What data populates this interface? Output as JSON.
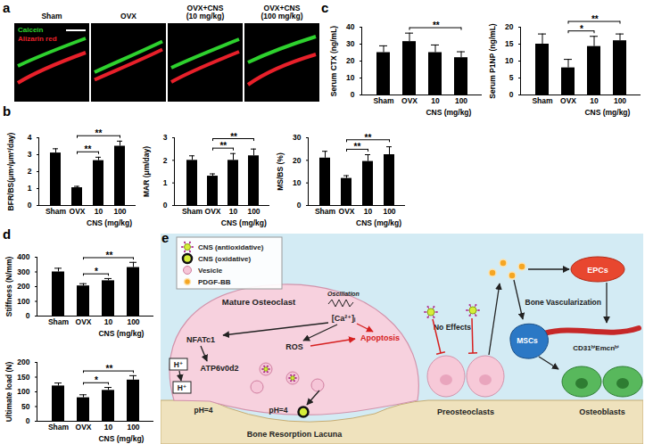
{
  "panel_labels": [
    "a",
    "b",
    "c",
    "d",
    "e"
  ],
  "micrographs": {
    "panels": [
      [
        "Sham"
      ],
      [
        "OVX"
      ],
      [
        "OVX+CNS",
        "(10 mg/kg)"
      ],
      [
        "OVX+CNS",
        "(100 mg/kg)"
      ]
    ],
    "legend": [
      {
        "name": "Calcein",
        "color": "#2ed12e"
      },
      {
        "name": "Alizarin red",
        "color": "#e8202a"
      }
    ]
  },
  "chart_data": [
    {
      "type": "bar",
      "y_label": "BFR/BS(μm³/μm²/day)",
      "categories": [
        "Sham",
        "OVX",
        "10",
        "100"
      ],
      "group": {
        "label": "CNS (mg/kg)",
        "categories": [
          "10",
          "100"
        ]
      },
      "values": [
        3.1,
        1.05,
        2.65,
        3.5
      ],
      "errors": [
        0.25,
        0.08,
        0.2,
        0.3
      ],
      "color": "#000000",
      "ylim": [
        0,
        4
      ],
      "yticks": [
        0,
        1,
        2,
        3,
        4
      ],
      "significance": [
        {
          "from": "OVX",
          "to": "10",
          "label": "**"
        },
        {
          "from": "OVX",
          "to": "100",
          "label": "**"
        }
      ]
    },
    {
      "type": "bar",
      "y_label": "MAR (μm/day)",
      "categories": [
        "Sham",
        "OVX",
        "10",
        "100"
      ],
      "group": {
        "label": "CNS (mg/kg)",
        "categories": [
          "10",
          "100"
        ]
      },
      "values": [
        2.0,
        1.3,
        2.0,
        2.2
      ],
      "errors": [
        0.2,
        0.1,
        0.3,
        0.3
      ],
      "color": "#000000",
      "ylim": [
        0,
        3
      ],
      "yticks": [
        0,
        1,
        2,
        3
      ],
      "significance": [
        {
          "from": "OVX",
          "to": "10",
          "label": "**"
        },
        {
          "from": "OVX",
          "to": "100",
          "label": "**"
        }
      ]
    },
    {
      "type": "bar",
      "y_label": "MS/BS (%)",
      "categories": [
        "Sham",
        "OVX",
        "10",
        "100"
      ],
      "group": {
        "label": "CNS (mg/kg)",
        "categories": [
          "10",
          "100"
        ]
      },
      "values": [
        21,
        12,
        19.5,
        22.5
      ],
      "errors": [
        3,
        1.2,
        3,
        3.5
      ],
      "color": "#000000",
      "ylim": [
        0,
        30
      ],
      "yticks": [
        0,
        10,
        20,
        30
      ],
      "significance": [
        {
          "from": "OVX",
          "to": "10",
          "label": "**"
        },
        {
          "from": "OVX",
          "to": "100",
          "label": "**"
        }
      ]
    },
    {
      "type": "bar",
      "y_label": "Serum CTX (ng/mL)",
      "categories": [
        "Sham",
        "OVX",
        "10",
        "100"
      ],
      "group": {
        "label": "CNS (mg/kg)",
        "categories": [
          "10",
          "100"
        ]
      },
      "values": [
        25,
        31.5,
        25,
        22
      ],
      "errors": [
        4,
        5,
        4.5,
        3.5
      ],
      "color": "#000000",
      "ylim": [
        0,
        40
      ],
      "yticks": [
        0,
        10,
        20,
        30,
        40
      ],
      "significance": [
        {
          "from": "OVX",
          "to": "100",
          "label": "**"
        }
      ]
    },
    {
      "type": "bar",
      "y_label": "Serum P1NP (ng/mL)",
      "categories": [
        "Sham",
        "OVX",
        "10",
        "100"
      ],
      "group": {
        "label": "CNS (mg/kg)",
        "categories": [
          "10",
          "100"
        ]
      },
      "values": [
        15,
        8,
        14.3,
        16
      ],
      "errors": [
        3,
        2.5,
        3,
        2
      ],
      "color": "#000000",
      "ylim": [
        0,
        20
      ],
      "yticks": [
        0,
        5,
        10,
        15,
        20
      ],
      "significance": [
        {
          "from": "OVX",
          "to": "10",
          "label": "*"
        },
        {
          "from": "OVX",
          "to": "100",
          "label": "**"
        }
      ]
    },
    {
      "type": "bar",
      "y_label": "Stiffness (N/mm)",
      "categories": [
        "Sham",
        "OVX",
        "10",
        "100"
      ],
      "group": {
        "label": "CNS (mg/kg)",
        "categories": [
          "10",
          "100"
        ]
      },
      "values": [
        300,
        205,
        240,
        330
      ],
      "errors": [
        25,
        15,
        15,
        35
      ],
      "color": "#000000",
      "ylim": [
        0,
        400
      ],
      "yticks": [
        0,
        100,
        200,
        300,
        400
      ],
      "significance": [
        {
          "from": "OVX",
          "to": "10",
          "label": "*"
        },
        {
          "from": "OVX",
          "to": "100",
          "label": "**"
        }
      ]
    },
    {
      "type": "bar",
      "y_label": "Ultimate load (N)",
      "categories": [
        "Sham",
        "OVX",
        "10",
        "100"
      ],
      "group": {
        "label": "CNS (mg/kg)",
        "categories": [
          "10",
          "100"
        ]
      },
      "values": [
        120,
        80,
        105,
        140
      ],
      "errors": [
        10,
        10,
        10,
        15
      ],
      "color": "#000000",
      "ylim": [
        0,
        200
      ],
      "yticks": [
        0,
        50,
        100,
        150,
        200
      ],
      "significance": [
        {
          "from": "OVX",
          "to": "10",
          "label": "*"
        },
        {
          "from": "OVX",
          "to": "100",
          "label": "**"
        }
      ]
    }
  ],
  "diagram": {
    "legend": [
      {
        "label": "CNS (antioxidative)",
        "marker": "antioxidative"
      },
      {
        "label": "CNS (oxidative)",
        "marker": "oxidative"
      },
      {
        "label": "Vesicle",
        "marker": "vesicle"
      },
      {
        "label": "PDGF-BB",
        "marker": "pdgf"
      }
    ],
    "labels": {
      "osteoclast": "Mature Osteoclast",
      "oscillation": "Oscillation",
      "calcium": "[Ca²⁺]ᵢ",
      "nfatc1": "NFATc1",
      "ros": "ROS",
      "apoptosis": "Apoptosis",
      "atp6v0d2": "ATP6v0d2",
      "proton": "H⁺",
      "ph": "pH=4",
      "lacuna": "Bone Resorption Lacuna",
      "no_effects": "No Effects",
      "preosteoclasts": "Preosteoclasts",
      "mscs": "MSCs",
      "epcs": "EPCs",
      "vascularization": "Bone Vascularization",
      "vessel": "CD31ʰⁱEmcnʰⁱ",
      "osteoblasts": "Osteoblasts"
    }
  }
}
